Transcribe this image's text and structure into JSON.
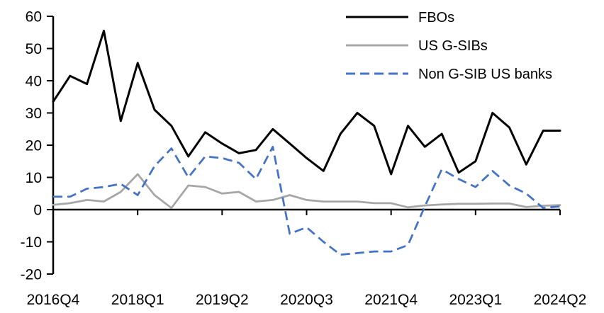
{
  "chart_data": {
    "type": "line",
    "title": "",
    "x_categories": [
      "2016Q4",
      "2017Q1",
      "2017Q2",
      "2017Q3",
      "2017Q4",
      "2018Q1",
      "2018Q2",
      "2018Q3",
      "2018Q4",
      "2019Q1",
      "2019Q2",
      "2019Q3",
      "2019Q4",
      "2020Q1",
      "2020Q2",
      "2020Q3",
      "2020Q4",
      "2021Q1",
      "2021Q2",
      "2021Q3",
      "2021Q4",
      "2022Q1",
      "2022Q2",
      "2022Q3",
      "2022Q4",
      "2023Q1",
      "2023Q2",
      "2023Q3",
      "2023Q4",
      "2024Q1",
      "2024Q2"
    ],
    "x_axis_tick_labels": [
      "2016Q4",
      "2018Q1",
      "2019Q2",
      "2020Q3",
      "2021Q4",
      "2023Q1",
      "2024Q2"
    ],
    "x_label_interval": 5,
    "y_ticks": [
      60,
      50,
      40,
      30,
      20,
      10,
      0,
      -10,
      -20
    ],
    "ylim": [
      -20,
      60
    ],
    "grid": false,
    "legend_position": "top-right",
    "axis_color": "#000000",
    "background_color": "#FFFFFF",
    "series": [
      {
        "name": "FBOs",
        "color": "#000000",
        "line_style": "solid",
        "values": [
          33.5,
          41.5,
          39,
          55.5,
          27.5,
          45.5,
          31,
          26,
          16.5,
          24,
          20.5,
          17.5,
          18.5,
          25,
          20.5,
          16,
          12,
          23.5,
          30,
          26,
          11,
          26,
          19.5,
          23.5,
          11.5,
          15,
          30,
          25.5,
          14,
          24.5,
          24.5
        ]
      },
      {
        "name": "US G-SIBs",
        "color": "#A6A6A6",
        "line_style": "solid",
        "values": [
          1.5,
          2,
          3,
          2.5,
          5.5,
          11,
          4.5,
          0.5,
          7.5,
          7,
          5,
          5.5,
          2.5,
          3,
          4.5,
          3,
          2.5,
          2.5,
          2.5,
          2,
          2,
          0.7,
          1.3,
          1.6,
          1.8,
          1.8,
          1.9,
          1.9,
          0.8,
          1.2,
          1.4
        ]
      },
      {
        "name": "Non G-SIB US banks",
        "color": "#4472C4",
        "line_style": "dashed",
        "values": [
          4,
          4,
          6.5,
          7,
          8,
          4.5,
          13.5,
          19,
          10,
          16.5,
          16,
          14.5,
          9.5,
          19.5,
          -7.5,
          -5.5,
          -10,
          -14,
          -13.5,
          -13,
          -13,
          -11,
          1,
          12.5,
          9.5,
          7,
          12,
          7.5,
          5,
          0.5,
          1
        ]
      }
    ]
  }
}
